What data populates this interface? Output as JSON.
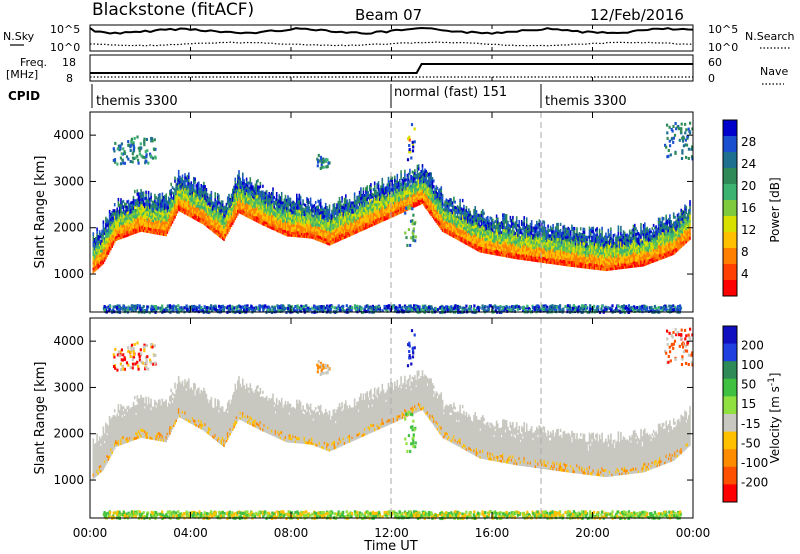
{
  "header": {
    "station": "Blackstone (fitACF)",
    "beam": "Beam 07",
    "date": "12/Feb/2016"
  },
  "panels": {
    "nsky_label": "N.Sky",
    "nsky_ticks": [
      "10^5",
      "10^0"
    ],
    "nsearch_label": "N.Search",
    "freq_label": "Freq.",
    "freq_unit": "[MHz]",
    "freq_ticks": [
      "18",
      "8"
    ],
    "nave_label": "Nave",
    "nave_ticks": [
      "60",
      "0"
    ],
    "cpid_label": "CPID",
    "cpid_segments": [
      "themis 3300",
      "normal (fast) 151",
      "themis 3300"
    ]
  },
  "chart_data": [
    {
      "type": "heatmap",
      "quantity": "Power",
      "ylabel": "Slant Range [km]",
      "yticks": [
        "4000",
        "3000",
        "2000",
        "1000"
      ],
      "ylim": [
        180,
        4500
      ],
      "xlim_hours": [
        0,
        24
      ],
      "colorbar": {
        "label": "Power [dB]",
        "ticks": [
          "28",
          "24",
          "20",
          "16",
          "12",
          "8",
          "4"
        ],
        "colors": [
          "#0000cc",
          "#1a4fd0",
          "#1e7090",
          "#2e8b57",
          "#3cb371",
          "#7fc93d",
          "#d8e000",
          "#ffc000",
          "#ff8000",
          "#ff4000",
          "#ff0000"
        ]
      },
      "echo_band": [
        {
          "t": 0.1,
          "range": 1100
        },
        {
          "t": 0.5,
          "range": 1300
        },
        {
          "t": 1.0,
          "range": 1800
        },
        {
          "t": 2.0,
          "range": 2000
        },
        {
          "t": 3.0,
          "range": 1900
        },
        {
          "t": 3.5,
          "range": 2450
        },
        {
          "t": 4.5,
          "range": 2150
        },
        {
          "t": 5.3,
          "range": 1800
        },
        {
          "t": 5.9,
          "range": 2400
        },
        {
          "t": 6.8,
          "range": 2150
        },
        {
          "t": 7.8,
          "range": 1900
        },
        {
          "t": 8.8,
          "range": 1850
        },
        {
          "t": 9.5,
          "range": 1700
        },
        {
          "t": 13.2,
          "range": 2600
        },
        {
          "t": 14.0,
          "range": 2000
        },
        {
          "t": 15.5,
          "range": 1550
        },
        {
          "t": 17.0,
          "range": 1400
        },
        {
          "t": 19.0,
          "range": 1250
        },
        {
          "t": 20.5,
          "range": 1150
        },
        {
          "t": 22.0,
          "range": 1250
        },
        {
          "t": 23.2,
          "range": 1500
        },
        {
          "t": 23.9,
          "range": 1850
        }
      ]
    },
    {
      "type": "heatmap",
      "quantity": "Velocity",
      "ylabel": "Slant Range [km]",
      "yticks": [
        "4000",
        "3000",
        "2000",
        "1000"
      ],
      "ylim": [
        180,
        4500
      ],
      "xlim_hours": [
        0,
        24
      ],
      "colorbar": {
        "label": "Velocity [m s",
        "label_sup": "-1",
        "label_close": "]",
        "ticks": [
          "200",
          "100",
          "50",
          "15",
          "-15",
          "-50",
          "-100",
          "-200"
        ],
        "colors": [
          "#1010c0",
          "#2040e0",
          "#2e8b57",
          "#40c040",
          "#90e040",
          "#c8c8c0",
          "#ffc000",
          "#ff8c00",
          "#ff5000",
          "#ff0000"
        ]
      }
    }
  ],
  "xaxis": {
    "ticks": [
      "00:00",
      "04:00",
      "08:00",
      "12:00",
      "16:00",
      "20:00",
      "00:00"
    ],
    "label": "Time UT"
  }
}
